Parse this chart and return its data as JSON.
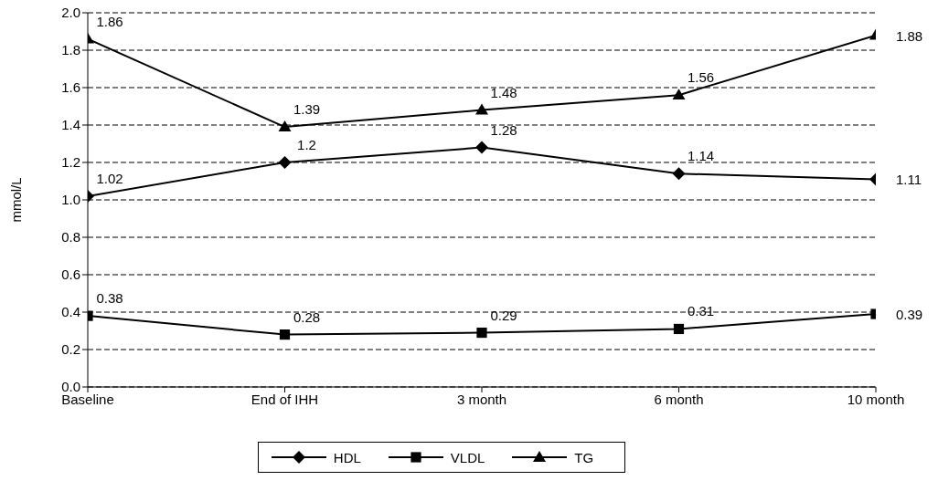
{
  "chart_data": {
    "type": "line",
    "ylabel": "mmol/L",
    "categories": [
      "Baseline",
      "End of IHH",
      "3 month",
      "6 month",
      "10 month"
    ],
    "series": [
      {
        "name": "HDL",
        "color": "#000000",
        "marker": "diamond",
        "values": [
          1.02,
          1.2,
          1.28,
          1.14,
          1.11
        ]
      },
      {
        "name": "VLDL",
        "color": "#000000",
        "marker": "square",
        "values": [
          0.38,
          0.28,
          0.29,
          0.31,
          0.39
        ]
      },
      {
        "name": "TG",
        "color": "#000000",
        "marker": "triangle",
        "values": [
          1.86,
          1.39,
          1.48,
          1.56,
          1.88
        ]
      }
    ],
    "ylim": [
      0,
      2
    ],
    "yticks": [
      {
        "value": 0,
        "label": "0.0"
      },
      {
        "value": 0.2,
        "label": "0.2"
      },
      {
        "value": 0.4,
        "label": "0.4"
      },
      {
        "value": 0.6,
        "label": "0.6"
      },
      {
        "value": 0.8,
        "label": "0.8"
      },
      {
        "value": 1,
        "label": "1.0"
      },
      {
        "value": 1.2,
        "label": "1.2"
      },
      {
        "value": 1.4,
        "label": "1.4"
      },
      {
        "value": 1.6,
        "label": "1.6"
      },
      {
        "value": 1.8,
        "label": "1.8"
      },
      {
        "value": 2,
        "label": "2.0"
      }
    ],
    "grid": "y",
    "legend": "bottom",
    "line_style": "solid",
    "data_labels": true
  }
}
